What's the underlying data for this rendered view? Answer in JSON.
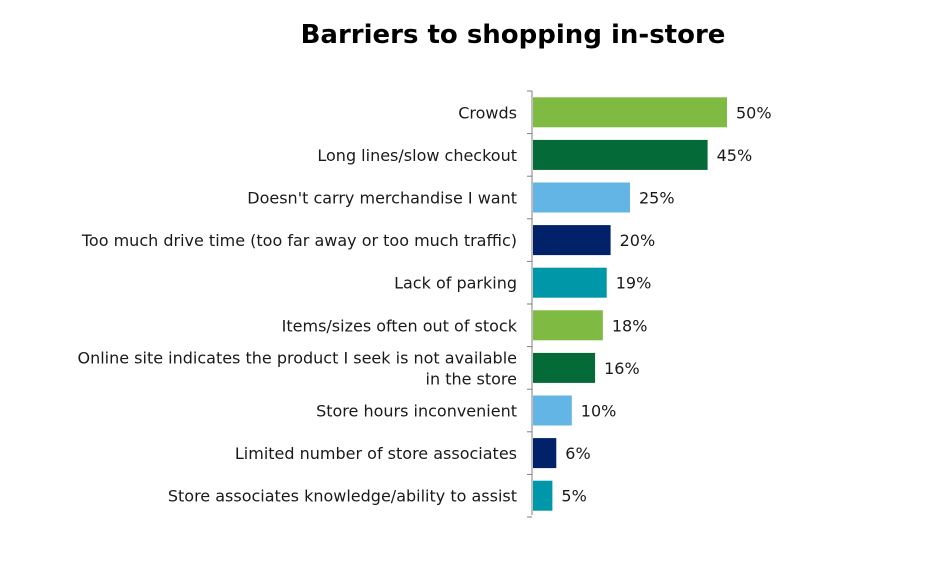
{
  "chart_data": {
    "type": "bar",
    "orientation": "horizontal",
    "title": "Barriers to shopping in-store",
    "categories": [
      "Crowds",
      "Long lines/slow checkout",
      "Doesn't carry merchandise I want",
      "Too much drive time (too far away or too much traffic)",
      "Lack of parking",
      "Items/sizes often out of stock",
      "Online site indicates the product I seek is not available in the store",
      "Store hours inconvenient",
      "Limited number of store associates",
      "Store associates knowledge/ability to assist"
    ],
    "category_lines": [
      [
        "Crowds"
      ],
      [
        "Long lines/slow checkout"
      ],
      [
        "Doesn't carry merchandise I want"
      ],
      [
        "Too much drive time (too far away or too much traffic)"
      ],
      [
        "Lack of parking"
      ],
      [
        "Items/sizes often out of stock"
      ],
      [
        "Online site indicates the product I seek is not available",
        "in the store"
      ],
      [
        "Store hours inconvenient"
      ],
      [
        "Limited number of store associates"
      ],
      [
        "Store associates knowledge/ability to assist"
      ]
    ],
    "values": [
      50,
      45,
      25,
      20,
      19,
      18,
      16,
      10,
      6,
      5
    ],
    "value_labels": [
      "50%",
      "45%",
      "25%",
      "20%",
      "19%",
      "18%",
      "16%",
      "10%",
      "6%",
      "5%"
    ],
    "colors": [
      "#7fba42",
      "#046a38",
      "#62b5e5",
      "#012169",
      "#0097a9",
      "#7fba42",
      "#046a38",
      "#62b5e5",
      "#012169",
      "#0097a9"
    ],
    "xlabel": "",
    "ylabel": "",
    "xlim": [
      0,
      50
    ],
    "grid": false,
    "legend": "none"
  }
}
